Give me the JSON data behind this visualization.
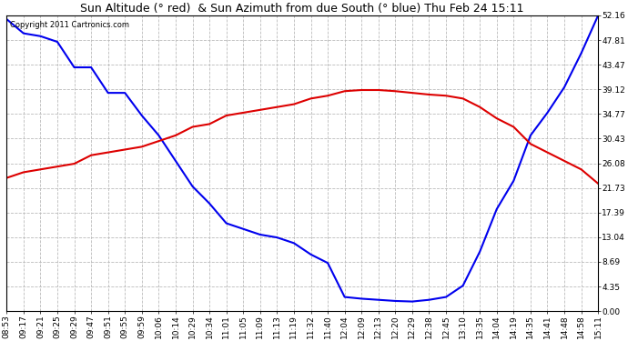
{
  "title": "Sun Altitude (° red)  & Sun Azimuth from due South (° blue) Thu Feb 24 15:11",
  "copyright": "Copyright 2011 Cartronics.com",
  "yticks": [
    0.0,
    4.35,
    8.69,
    13.04,
    17.39,
    21.73,
    26.08,
    30.43,
    34.77,
    39.12,
    43.47,
    47.81,
    52.16
  ],
  "ymin": 0.0,
  "ymax": 52.16,
  "background_color": "#ffffff",
  "grid_color": "#bbbbbb",
  "line_blue_color": "#0000ee",
  "line_red_color": "#dd0000",
  "x_labels": [
    "08:53",
    "09:17",
    "09:21",
    "09:25",
    "09:29",
    "09:47",
    "09:51",
    "09:55",
    "09:59",
    "10:06",
    "10:14",
    "10:29",
    "10:34",
    "11:01",
    "11:05",
    "11:09",
    "11:13",
    "11:19",
    "11:32",
    "11:40",
    "12:04",
    "12:09",
    "12:13",
    "12:20",
    "12:29",
    "12:38",
    "12:45",
    "13:10",
    "13:35",
    "14:04",
    "14:19",
    "14:35",
    "14:41",
    "14:48",
    "14:58",
    "15:11"
  ],
  "blue_y": [
    51.5,
    49.0,
    48.5,
    47.5,
    43.0,
    43.0,
    38.5,
    38.5,
    34.5,
    31.0,
    26.5,
    22.0,
    19.0,
    15.5,
    14.5,
    13.5,
    13.0,
    12.0,
    10.0,
    8.5,
    2.5,
    2.2,
    2.0,
    1.8,
    1.7,
    2.0,
    2.5,
    4.5,
    10.5,
    18.0,
    23.0,
    31.0,
    35.0,
    39.5,
    45.5,
    52.16
  ],
  "red_y": [
    23.5,
    24.5,
    25.0,
    25.5,
    26.0,
    27.5,
    28.0,
    28.5,
    29.0,
    30.0,
    31.0,
    32.5,
    33.0,
    34.5,
    35.0,
    35.5,
    36.0,
    36.5,
    37.5,
    38.0,
    38.8,
    39.0,
    39.0,
    38.8,
    38.5,
    38.2,
    38.0,
    37.5,
    36.0,
    34.0,
    32.5,
    29.5,
    28.0,
    26.5,
    25.0,
    22.5
  ],
  "figwidth": 6.9,
  "figheight": 3.75,
  "dpi": 100,
  "title_fontsize": 9.0,
  "tick_fontsize": 6.5,
  "copyright_fontsize": 6.0,
  "linewidth": 1.5
}
